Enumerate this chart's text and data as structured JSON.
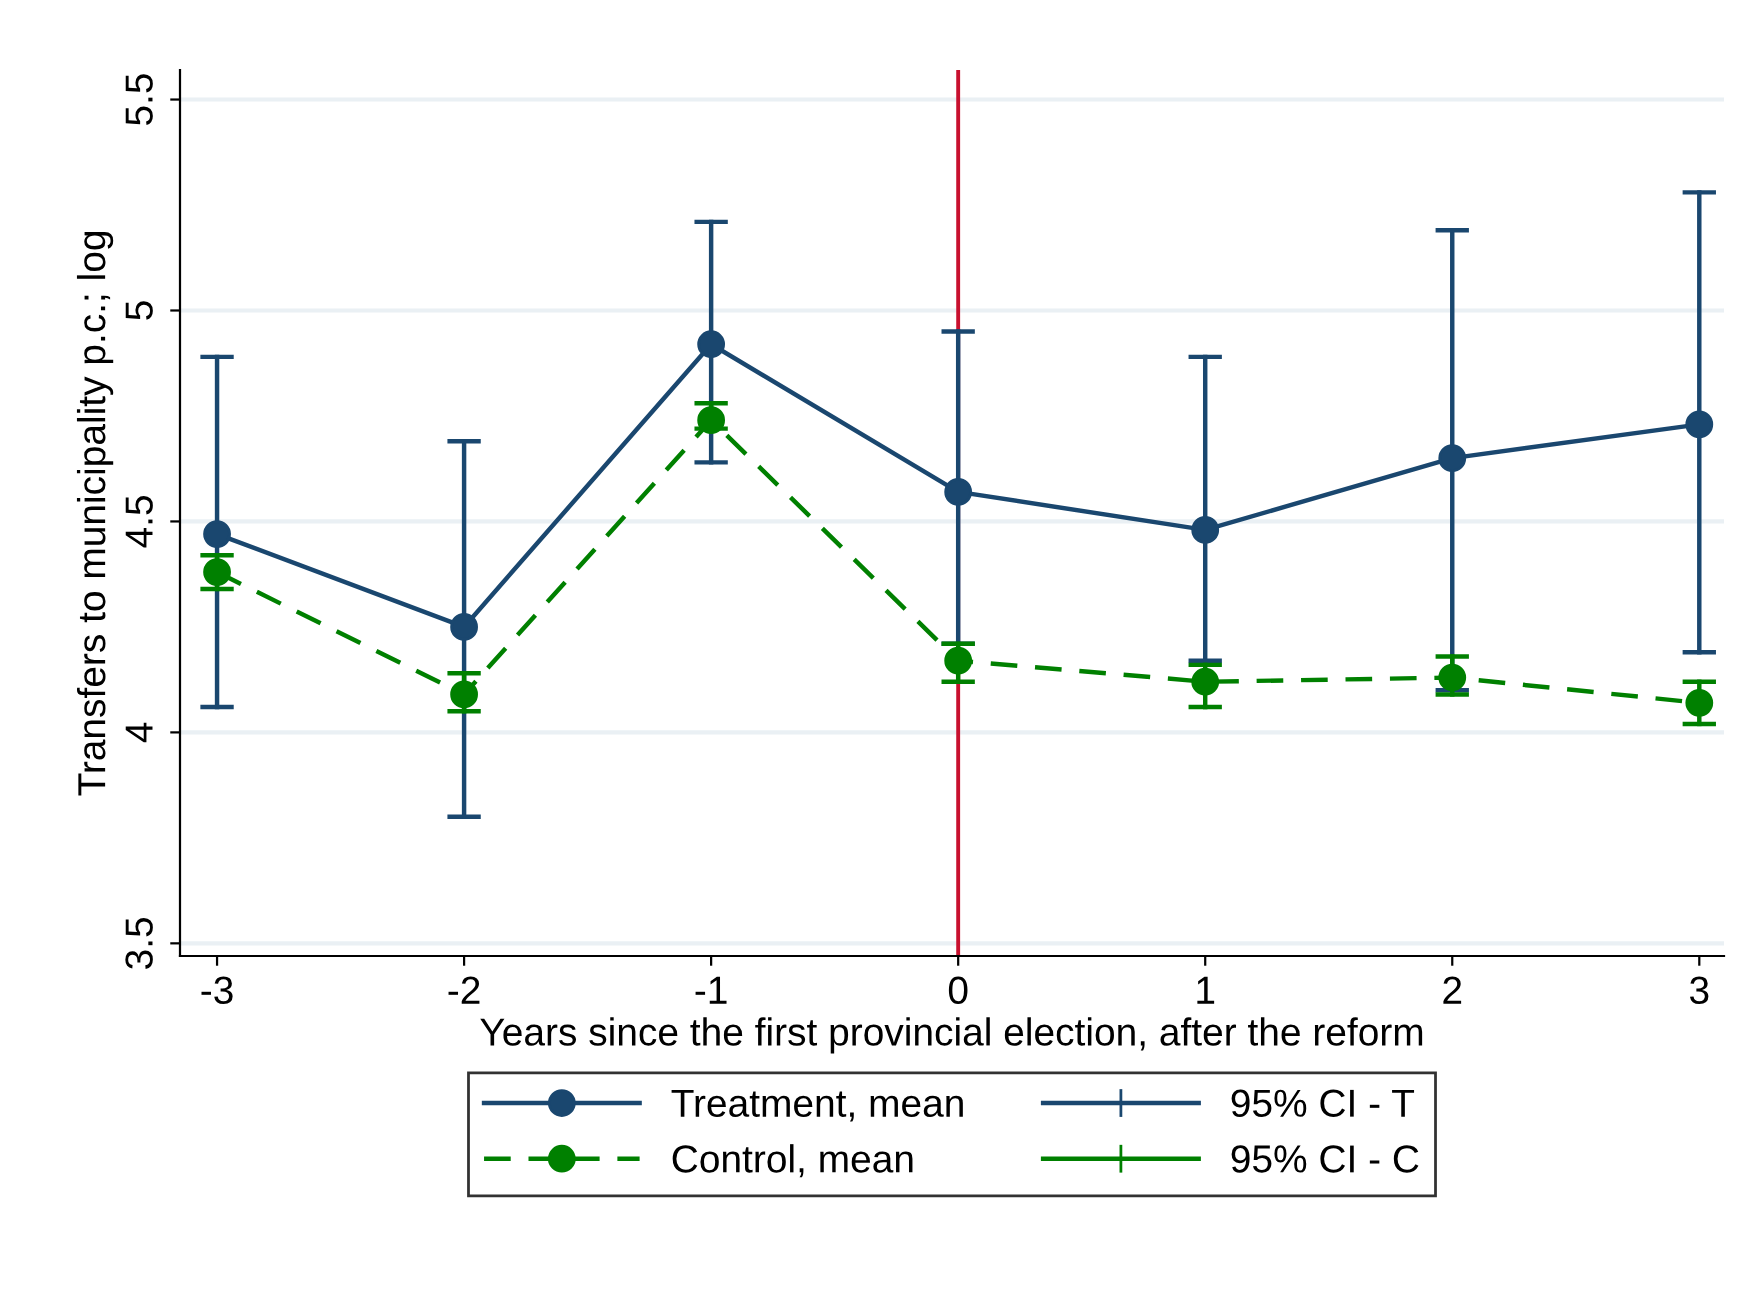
{
  "chart_data": {
    "type": "line",
    "xlabel": "Years since the first provincial election, after the reform",
    "ylabel": "Transfers to municipality p.c.; log",
    "x": [
      -3,
      -2,
      -1,
      0,
      1,
      2,
      3
    ],
    "series": [
      {
        "name": "Treatment, mean",
        "color": "#1a476f",
        "line_style": "solid",
        "values": [
          4.47,
          4.25,
          4.92,
          4.57,
          4.48,
          4.65,
          4.73
        ],
        "errors": [
          [
            4.06,
            4.89
          ],
          [
            3.8,
            4.69
          ],
          [
            4.64,
            5.21
          ],
          [
            4.21,
            4.95
          ],
          [
            4.17,
            4.89
          ],
          [
            4.1,
            5.19
          ],
          [
            4.19,
            5.28
          ]
        ]
      },
      {
        "name": "Control, mean",
        "color": "#008000",
        "line_style": "dashed",
        "values": [
          4.38,
          4.09,
          4.74,
          4.17,
          4.12,
          4.13,
          4.07
        ],
        "errors": [
          [
            4.34,
            4.42
          ],
          [
            4.05,
            4.14
          ],
          [
            4.72,
            4.78
          ],
          [
            4.12,
            4.21
          ],
          [
            4.06,
            4.16
          ],
          [
            4.09,
            4.18
          ],
          [
            4.02,
            4.12
          ]
        ]
      }
    ],
    "annotations": [
      "95% CI - T",
      "95% CI - C"
    ],
    "marker": "circle",
    "xlim": [
      -3.15,
      3.1
    ],
    "xticks": [
      -3,
      -2,
      -1,
      0,
      1,
      2,
      3
    ],
    "ylim": [
      3.47,
      5.57
    ],
    "yticks": [
      3.5,
      4,
      4.5,
      5,
      5.5
    ],
    "grid": "y",
    "ref_lines": [
      {
        "axis": "x",
        "value": 0,
        "color": "#c8102e"
      }
    ],
    "legend": "bottom"
  }
}
